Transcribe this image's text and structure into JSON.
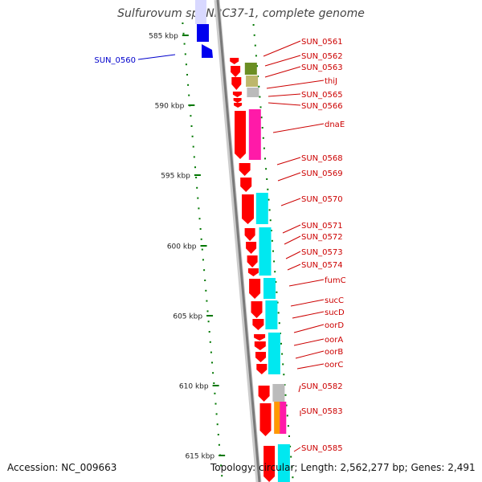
{
  "title": "Sulfurovum sp. NBC37-1, complete genome",
  "footer": {
    "accession": "Accession: NC_009663",
    "topology": "Topology: circular; Length: 2,562,277 bp; Genes: 2,491"
  },
  "ticks": [
    "585 kbp",
    "590 kbp",
    "595 kbp",
    "600 kbp",
    "605 kbp",
    "610 kbp",
    "615 kbp"
  ],
  "genes": {
    "forward": [
      "SUN_0560"
    ],
    "reverse": [
      "SUN_0561",
      "SUN_0562",
      "SUN_0563",
      "thiJ",
      "SUN_0565",
      "SUN_0566",
      "dnaE",
      "SUN_0568",
      "SUN_0569",
      "SUN_0570",
      "SUN_0571",
      "SUN_0572",
      "SUN_0573",
      "SUN_0574",
      "fumC",
      "sucC",
      "sucD",
      "oorD",
      "oorA",
      "oorB",
      "oorC",
      "SUN_0582",
      "SUN_0583",
      "SUN_0585"
    ]
  },
  "colors": {
    "forward": "#0000ee",
    "reverse": "#ff0000",
    "label_forward": "#0000cc",
    "label_reverse": "#cc0000",
    "cog_cyan": "#00e8f0",
    "cog_magenta": "#ff1aa8",
    "cog_olive": "#6b8e23",
    "cog_khaki": "#bdb76b",
    "cog_gray": "#bbbbbb",
    "cog_orange": "#ff9900",
    "tick": "#007700",
    "backbone": "#999999"
  }
}
